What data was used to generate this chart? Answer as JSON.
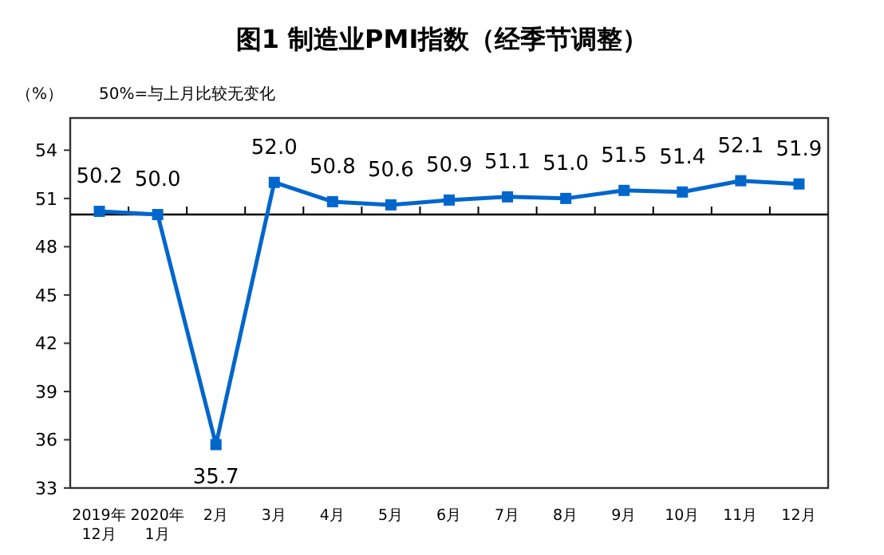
{
  "chart_data": {
    "type": "line",
    "title": "图1 制造业PMI指数（经季节调整）",
    "ylabel": "（%）",
    "annotations": [
      "50%=与上月比较无变化"
    ],
    "categories": [
      "2019年\n12月",
      "2020年\n1月",
      "2月",
      "3月",
      "4月",
      "5月",
      "6月",
      "7月",
      "8月",
      "9月",
      "10月",
      "11月",
      "12月"
    ],
    "series": [
      {
        "color": "#0066cc",
        "values": [
          50.2,
          50.0,
          35.7,
          52.0,
          50.8,
          50.6,
          50.9,
          51.1,
          51.0,
          51.5,
          51.4,
          52.1,
          51.9
        ],
        "value_labels": [
          "50.2",
          "50.0",
          "35.7",
          "52.0",
          "50.8",
          "50.6",
          "50.9",
          "51.1",
          "51.0",
          "51.5",
          "51.4",
          "52.1",
          "51.9"
        ]
      }
    ],
    "ylim": [
      33,
      56
    ],
    "yticks": [
      33,
      36,
      39,
      42,
      45,
      48,
      51,
      54
    ],
    "ref_lines": [
      {
        "axis": "y",
        "value": 50,
        "color": "#000000"
      }
    ],
    "marker": "square",
    "line_style": "solid"
  }
}
